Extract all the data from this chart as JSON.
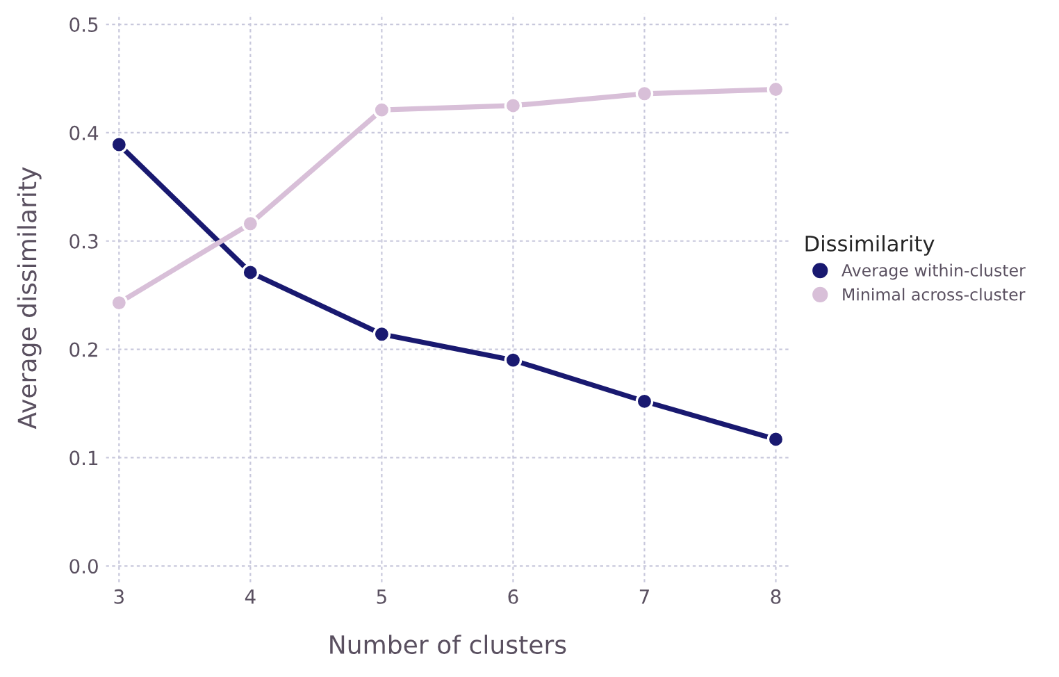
{
  "chart_data": {
    "type": "line",
    "xlabel": "Number of clusters",
    "ylabel": "Average dissimilarity",
    "legend_title": "Dissimilarity",
    "x": [
      3,
      4,
      5,
      6,
      7,
      8
    ],
    "series": [
      {
        "name": "Average within-cluster",
        "color": "#191970",
        "values": [
          0.389,
          0.271,
          0.214,
          0.19,
          0.152,
          0.117
        ]
      },
      {
        "name": "Minimal across-cluster",
        "color": "#d8bfd8",
        "values": [
          0.243,
          0.316,
          0.421,
          0.425,
          0.436,
          0.44
        ]
      }
    ],
    "xlim": [
      2.9,
      8.1
    ],
    "xticks": [
      3,
      4,
      5,
      6,
      7,
      8
    ],
    "ylim": [
      -0.015,
      0.51
    ],
    "yticks": [
      {
        "value": 0,
        "label": "0.0"
      },
      0.1,
      0.2,
      0.3,
      0.4,
      0.5
    ],
    "grid": true,
    "legend": "right",
    "marker": "circle",
    "line_style": "solid"
  }
}
